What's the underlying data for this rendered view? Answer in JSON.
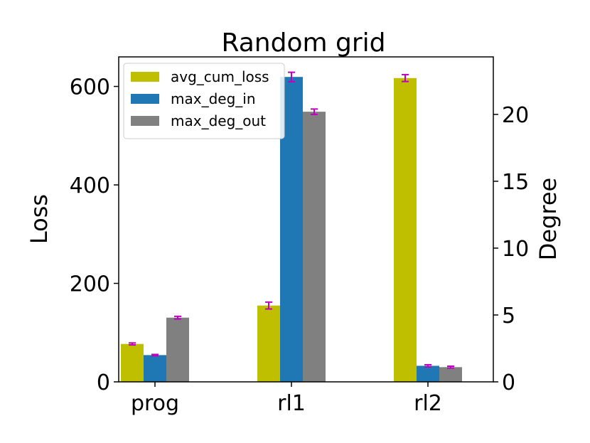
{
  "chart_data": {
    "type": "bar",
    "title": "Random grid",
    "categories": [
      "prog",
      "rl1",
      "rl2"
    ],
    "series": [
      {
        "name": "avg_cum_loss",
        "axis": "left",
        "color": "#bfbf00",
        "values": [
          77,
          155,
          617
        ],
        "errors": [
          2,
          7,
          7
        ]
      },
      {
        "name": "max_deg_in",
        "axis": "right",
        "color": "#1f77b4",
        "values": [
          2.0,
          22.8,
          1.2
        ],
        "errors": [
          0.05,
          0.35,
          0.08
        ]
      },
      {
        "name": "max_deg_out",
        "axis": "right",
        "color": "#808080",
        "values": [
          4.8,
          20.2,
          1.1
        ],
        "errors": [
          0.1,
          0.2,
          0.07
        ]
      }
    ],
    "ylabel": "Loss",
    "ylabel_right": "Degree",
    "ylim": [
      0,
      660
    ],
    "ylim_right": [
      0,
      24.3
    ],
    "yticks": [
      0,
      200,
      400,
      600
    ],
    "yticks_right": [
      0,
      5,
      10,
      15,
      20
    ],
    "error_color": "#bf00bf",
    "legend_position": "top-left",
    "grid": false
  }
}
